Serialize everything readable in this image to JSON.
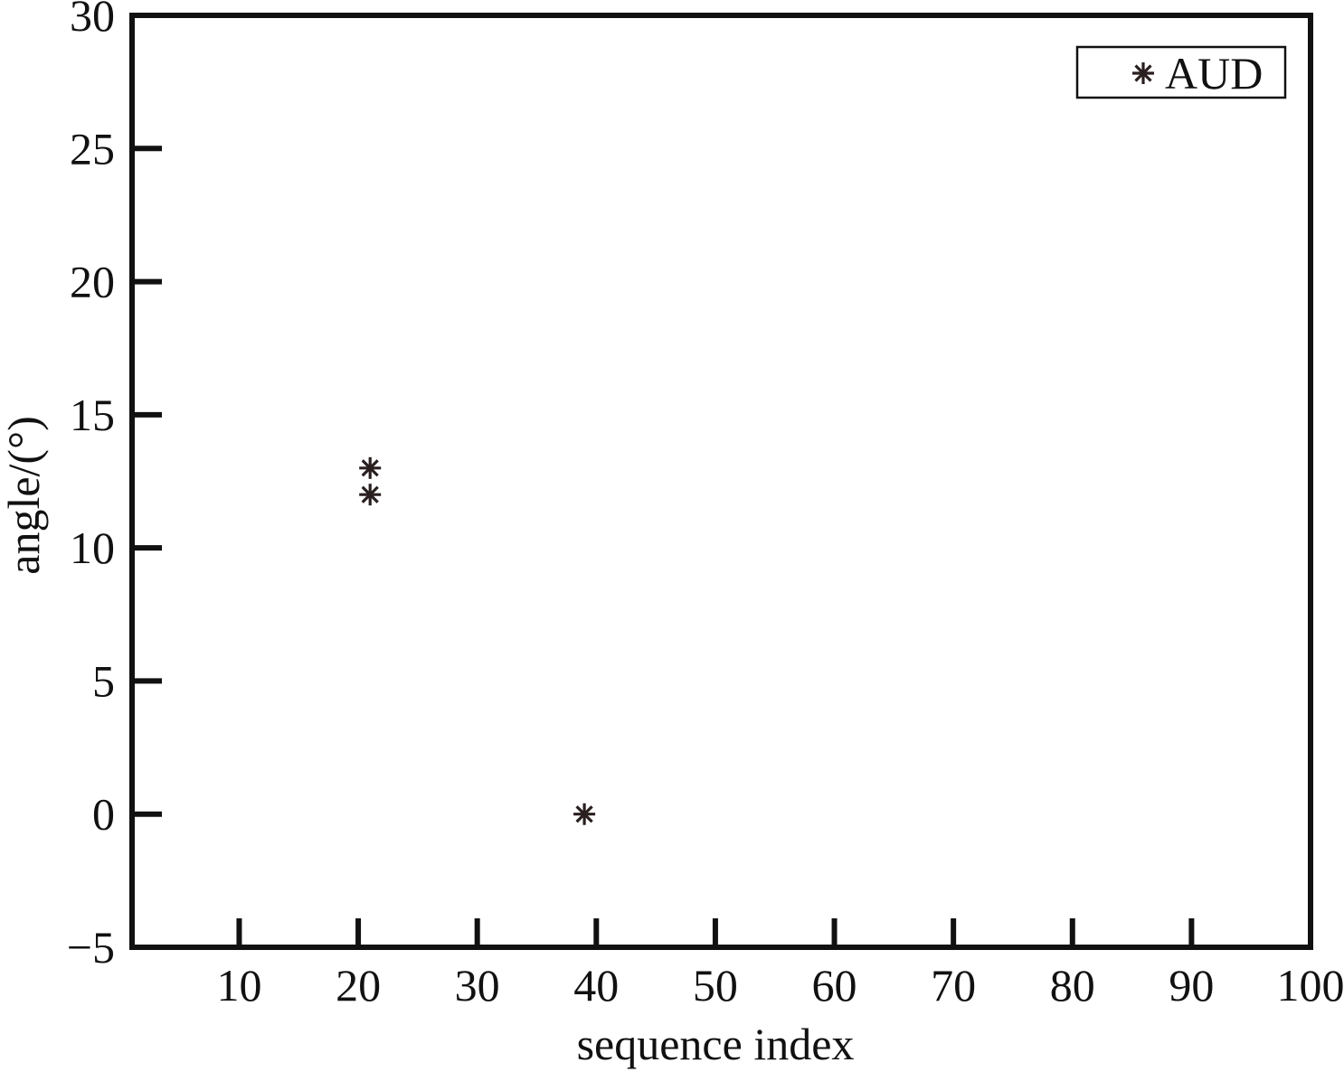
{
  "chart_data": {
    "type": "scatter",
    "title": "",
    "xlabel": "sequence index",
    "ylabel": "angle/(°)",
    "xlim": [
      1,
      100
    ],
    "ylim": [
      -5,
      30
    ],
    "xticks": [
      10,
      20,
      30,
      40,
      50,
      60,
      70,
      80,
      90,
      100
    ],
    "yticks": [
      -5,
      0,
      5,
      10,
      15,
      20,
      25,
      30
    ],
    "ytick_labels": [
      "−5",
      "0",
      "5",
      "10",
      "15",
      "20",
      "25",
      "30"
    ],
    "grid": false,
    "legend_position": "top-right",
    "marker": "asterisk",
    "series": [
      {
        "name": "AUD",
        "color": "#2a1f1f",
        "points": [
          {
            "x": 21,
            "y": 13
          },
          {
            "x": 21,
            "y": 12
          },
          {
            "x": 39,
            "y": 0
          }
        ]
      }
    ]
  }
}
